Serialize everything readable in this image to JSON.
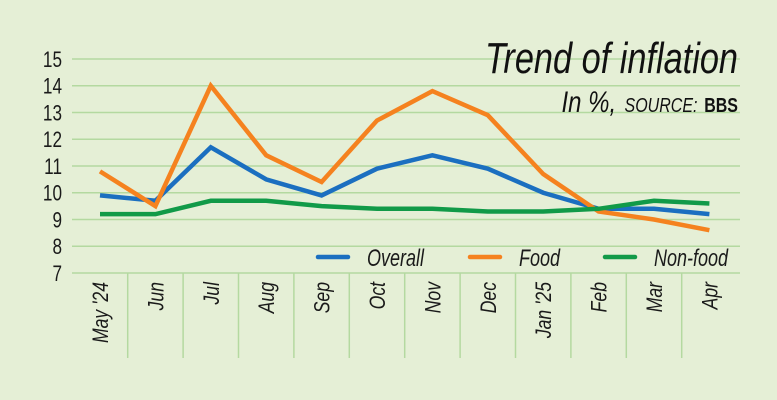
{
  "chart_data": {
    "type": "line",
    "title": "Trend of inflation",
    "subtitle_prefix": "In %,",
    "source_label": "SOURCE:",
    "source_name": "BBS",
    "xlabel": "",
    "ylabel": "",
    "ylim": [
      7,
      15
    ],
    "yticks": [
      7,
      8,
      9,
      10,
      11,
      12,
      13,
      14,
      15
    ],
    "grid": true,
    "legend_position": "bottom-right",
    "categories": [
      "May '24",
      "Jun",
      "Jul",
      "Aug",
      "Sep",
      "Oct",
      "Nov",
      "Dec",
      "Jan '25",
      "Feb",
      "Mar",
      "Apr"
    ],
    "series": [
      {
        "name": "Overall",
        "color": "#1b6fc0",
        "values": [
          9.9,
          9.7,
          11.7,
          10.5,
          9.9,
          10.9,
          11.4,
          10.9,
          10.0,
          9.4,
          9.4,
          9.2
        ]
      },
      {
        "name": "Food",
        "color": "#f5821f",
        "values": [
          10.8,
          9.5,
          14.0,
          11.4,
          10.4,
          12.7,
          13.8,
          12.9,
          10.7,
          9.3,
          9.0,
          8.6
        ]
      },
      {
        "name": "Non-food",
        "color": "#119a48",
        "values": [
          9.2,
          9.2,
          9.7,
          9.7,
          9.5,
          9.4,
          9.4,
          9.3,
          9.3,
          9.4,
          9.7,
          9.6
        ]
      }
    ]
  },
  "colors": {
    "background": "#e5efd6",
    "grid": "#b4d9a0"
  }
}
